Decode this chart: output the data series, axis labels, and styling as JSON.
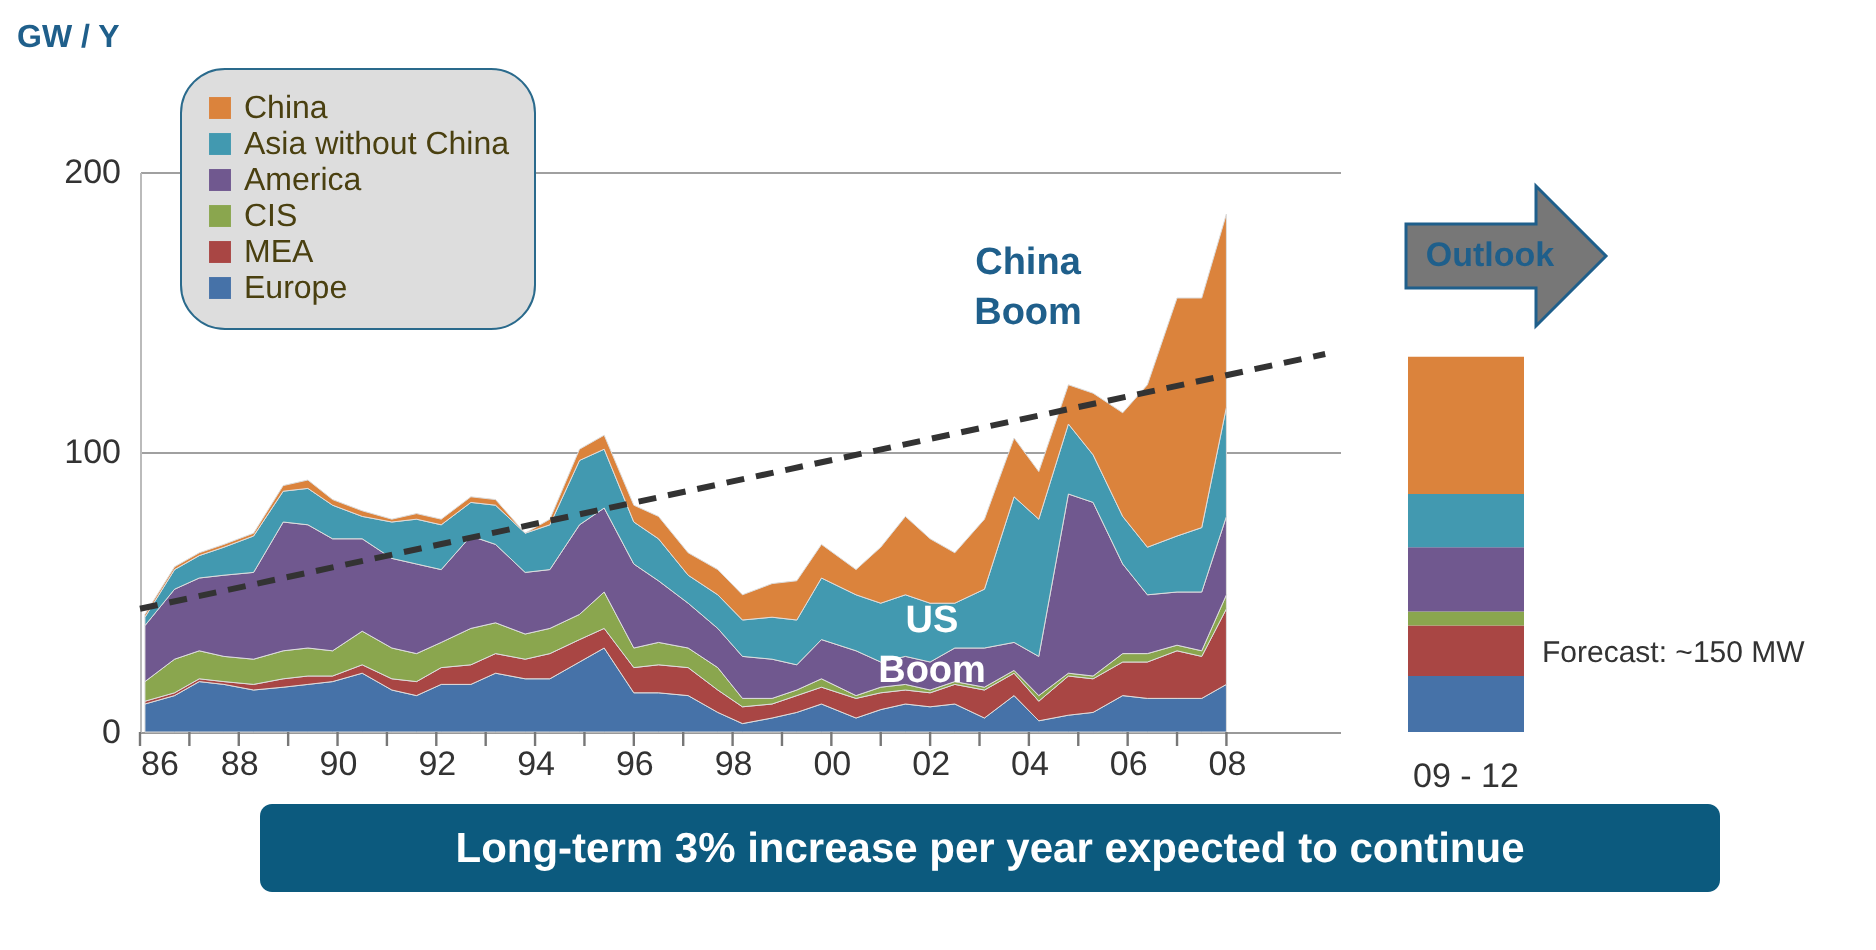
{
  "chart_data": [
    {
      "type": "area",
      "stacked": true,
      "ylabel": "GW / Y",
      "x": [
        1986.1,
        1986.7,
        1987.2,
        1987.7,
        1988.3,
        1988.9,
        1989.4,
        1989.9,
        1990.5,
        1991.1,
        1991.6,
        1992.1,
        1992.7,
        1993.2,
        1993.8,
        1994.3,
        1994.9,
        1995.4,
        1996.0,
        1996.5,
        1997.1,
        1997.7,
        1998.2,
        1998.8,
        1999.3,
        1999.8,
        2000.5,
        2001.0,
        2001.5,
        2002.0,
        2002.5,
        2003.1,
        2003.7,
        2004.2,
        2004.8,
        2005.3,
        2005.9,
        2006.4,
        2007.0,
        2007.5,
        2008.0
      ],
      "series": [
        {
          "name": "Europe",
          "color": "#4672a8",
          "values": [
            10,
            13,
            18,
            17,
            15,
            16,
            17,
            18,
            21,
            15,
            13,
            17,
            17,
            21,
            19,
            19,
            25,
            30,
            14,
            14,
            13,
            7,
            3,
            5,
            7,
            10,
            5,
            8,
            10,
            9,
            10,
            5,
            13,
            4,
            6,
            7,
            13,
            12,
            12,
            12,
            17
          ]
        },
        {
          "name": "MEA",
          "color": "#a94644",
          "values": [
            1,
            1,
            1,
            1,
            2,
            3,
            3,
            2,
            3,
            4,
            5,
            6,
            7,
            7,
            7,
            9,
            8,
            7,
            9,
            10,
            10,
            8,
            6,
            5,
            6,
            6,
            7,
            6,
            5,
            5,
            7,
            10,
            8,
            7,
            14,
            12,
            12,
            13,
            17,
            15,
            27
          ]
        },
        {
          "name": "CIS",
          "color": "#8aa64e",
          "values": [
            7,
            12,
            10,
            9,
            9,
            10,
            10,
            9,
            12,
            11,
            10,
            9,
            13,
            11,
            9,
            9,
            9,
            13,
            7,
            8,
            7,
            8,
            3,
            2,
            2,
            3,
            1,
            2,
            2,
            1,
            1,
            1,
            1,
            2,
            1,
            1,
            3,
            3,
            2,
            2,
            5
          ]
        },
        {
          "name": "America",
          "color": "#70588f",
          "values": [
            20,
            25,
            26,
            29,
            31,
            46,
            44,
            40,
            33,
            32,
            32,
            26,
            33,
            28,
            22,
            21,
            32,
            30,
            30,
            22,
            16,
            14,
            15,
            14,
            9,
            14,
            16,
            9,
            10,
            10,
            12,
            14,
            10,
            14,
            64,
            62,
            32,
            21,
            19,
            21,
            28
          ]
        },
        {
          "name": "Asia without China",
          "color": "#4299b0",
          "values": [
            3,
            7,
            8,
            10,
            13,
            11,
            13,
            12,
            8,
            13,
            16,
            16,
            12,
            14,
            14,
            16,
            23,
            21,
            15,
            15,
            10,
            12,
            13,
            15,
            16,
            22,
            20,
            21,
            22,
            21,
            16,
            21,
            52,
            49,
            25,
            17,
            17,
            17,
            20,
            23,
            39
          ]
        },
        {
          "name": "China",
          "color": "#db833c",
          "values": [
            1,
            1,
            1,
            1,
            1,
            2,
            3,
            2,
            2,
            1,
            2,
            2,
            2,
            2,
            0,
            2,
            4,
            5,
            6,
            8,
            8,
            9,
            9,
            12,
            14,
            12,
            9,
            20,
            28,
            23,
            18,
            25,
            21,
            17,
            14,
            22,
            37,
            58,
            85,
            82,
            69
          ]
        },
        {
          "type": "line",
          "color": "#333333",
          "line_style": "dashed",
          "x": [
            1986.0,
            2010.0
          ],
          "values": [
            44,
            135
          ]
        }
      ],
      "xlim": [
        1986,
        2010.3
      ],
      "xticks": [
        {
          "value": 1986,
          "label": "86"
        },
        {
          "value": 1987,
          "label": null
        },
        {
          "value": 1988,
          "label": "88"
        },
        {
          "value": 1989,
          "label": null
        },
        {
          "value": 1990,
          "label": "90"
        },
        {
          "value": 1991,
          "label": null
        },
        {
          "value": 1992,
          "label": "92"
        },
        {
          "value": 1993,
          "label": null
        },
        {
          "value": 1994,
          "label": "94"
        },
        {
          "value": 1995,
          "label": null
        },
        {
          "value": 1996,
          "label": "96"
        },
        {
          "value": 1997,
          "label": null
        },
        {
          "value": 1998,
          "label": "98"
        },
        {
          "value": 1999,
          "label": null
        },
        {
          "value": 2000,
          "label": "00"
        },
        {
          "value": 2001,
          "label": null
        },
        {
          "value": 2002,
          "label": "02"
        },
        {
          "value": 2003,
          "label": null
        },
        {
          "value": 2004,
          "label": "04"
        },
        {
          "value": 2005,
          "label": null
        },
        {
          "value": 2006,
          "label": "06"
        },
        {
          "value": 2007,
          "label": null
        },
        {
          "value": 2008,
          "label": "08"
        }
      ],
      "ylim": [
        0,
        200
      ],
      "yticks": [
        0,
        100,
        200
      ],
      "grid": "y",
      "legend": "top left",
      "annotations": [
        "China Boom",
        "US Boom",
        "Long-term 3% increase per year expected to continue"
      ]
    },
    {
      "type": "bar",
      "stacked": true,
      "categories": [
        "09 - 12"
      ],
      "ylim": [
        0,
        200
      ],
      "tick_labels": "x",
      "series": [
        {
          "color": "#4672a8",
          "values": [
            20
          ]
        },
        {
          "color": "#a94644",
          "values": [
            18
          ]
        },
        {
          "color": "#8aa64e",
          "values": [
            5
          ]
        },
        {
          "color": "#70588f",
          "values": [
            23
          ]
        },
        {
          "color": "#4299b0",
          "values": [
            19
          ]
        },
        {
          "color": "#db833c",
          "values": [
            49
          ]
        }
      ],
      "annotations": [
        "Outlook",
        "Forecast: ~150 MW"
      ]
    }
  ]
}
